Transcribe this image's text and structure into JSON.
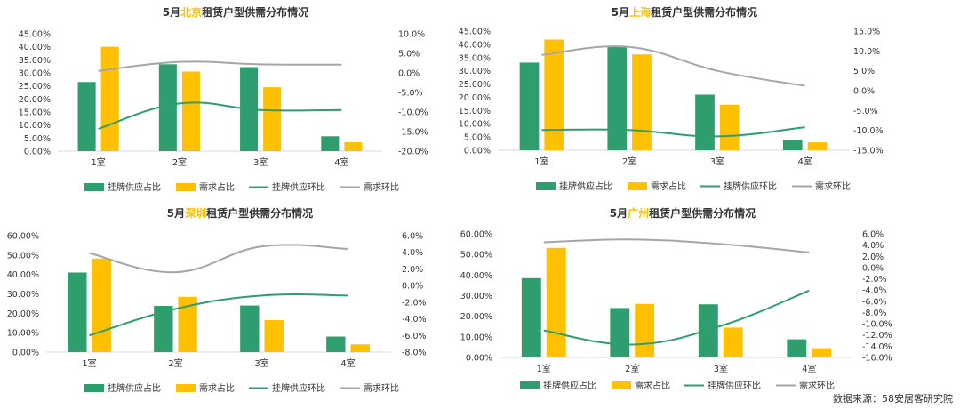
{
  "colors": {
    "supply": "#2e9e6e",
    "demand": "#ffc000",
    "supply_line": "#2e9e6e",
    "demand_line": "#a6a6a6",
    "city_highlight": "#ffc000",
    "axis": "#d9d9d9",
    "text": "#333333"
  },
  "source": {
    "label": "数据来源：",
    "value": "58安居客研究院"
  },
  "chart_data": [
    {
      "type": "bar",
      "title_prefix": "5月",
      "city": "北京",
      "title_suffix": "租赁户型供需分布情况",
      "categories": [
        "1室",
        "2室",
        "3室",
        "4室"
      ],
      "y_left": {
        "min": 0,
        "max": 0.45,
        "step": 0.05,
        "ticks": [
          "0.00%",
          "5.00%",
          "10.00%",
          "15.00%",
          "20.00%",
          "25.00%",
          "30.00%",
          "35.00%",
          "40.00%",
          "45.00%"
        ]
      },
      "y_right": {
        "min": -0.2,
        "max": 0.1,
        "step": 0.05,
        "ticks": [
          "-20.0%",
          "-15.0%",
          "-10.0%",
          "-5.0%",
          "0.0%",
          "5.0%",
          "10.0%"
        ]
      },
      "series": [
        {
          "name": "挂牌供应占比",
          "kind": "bar",
          "axis": "left",
          "values": [
            0.265,
            0.333,
            0.322,
            0.057
          ]
        },
        {
          "name": "需求占比",
          "kind": "bar",
          "axis": "left",
          "values": [
            0.4,
            0.305,
            0.245,
            0.034
          ]
        },
        {
          "name": "挂牌供应环比",
          "kind": "line",
          "axis": "right",
          "values": [
            -0.143,
            -0.078,
            -0.095,
            -0.095
          ]
        },
        {
          "name": "需求环比",
          "kind": "line",
          "axis": "right",
          "values": [
            0.005,
            0.028,
            0.022,
            0.021
          ]
        }
      ]
    },
    {
      "type": "bar",
      "title_prefix": "5月",
      "city": "上海",
      "title_suffix": "租赁户型供需分布情况",
      "categories": [
        "1室",
        "2室",
        "3室",
        "4室"
      ],
      "y_left": {
        "min": 0,
        "max": 0.45,
        "step": 0.05,
        "ticks": [
          "0.00%",
          "5.00%",
          "10.00%",
          "15.00%",
          "20.00%",
          "25.00%",
          "30.00%",
          "35.00%",
          "40.00%",
          "45.00%"
        ]
      },
      "y_right": {
        "min": -0.15,
        "max": 0.15,
        "step": 0.05,
        "ticks": [
          "-15.0%",
          "-10.0%",
          "-5.0%",
          "0.0%",
          "5.0%",
          "10.0%",
          "15.0%"
        ]
      },
      "series": [
        {
          "name": "挂牌供应占比",
          "kind": "bar",
          "axis": "left",
          "values": [
            0.331,
            0.39,
            0.21,
            0.04
          ]
        },
        {
          "name": "需求占比",
          "kind": "bar",
          "axis": "left",
          "values": [
            0.418,
            0.362,
            0.172,
            0.03
          ]
        },
        {
          "name": "挂牌供应环比",
          "kind": "line",
          "axis": "right",
          "values": [
            -0.099,
            -0.099,
            -0.115,
            -0.092
          ]
        },
        {
          "name": "需求环比",
          "kind": "line",
          "axis": "right",
          "values": [
            0.09,
            0.11,
            0.05,
            0.012
          ]
        }
      ]
    },
    {
      "type": "bar",
      "title_prefix": "5月",
      "city": "深圳",
      "title_suffix": "租赁户型供需分布情况",
      "categories": [
        "1室",
        "2室",
        "3室",
        "4室"
      ],
      "y_left": {
        "min": 0,
        "max": 0.6,
        "step": 0.1,
        "ticks": [
          "0.00%",
          "10.00%",
          "20.00%",
          "30.00%",
          "40.00%",
          "50.00%",
          "60.00%"
        ]
      },
      "y_right": {
        "min": -0.08,
        "max": 0.06,
        "step": 0.02,
        "ticks": [
          "-8.0%",
          "-6.0%",
          "-4.0%",
          "-2.0%",
          "0.0%",
          "2.0%",
          "4.0%",
          "6.0%"
        ]
      },
      "series": [
        {
          "name": "挂牌供应占比",
          "kind": "bar",
          "axis": "left",
          "values": [
            0.41,
            0.238,
            0.24,
            0.08
          ]
        },
        {
          "name": "需求占比",
          "kind": "bar",
          "axis": "left",
          "values": [
            0.482,
            0.285,
            0.165,
            0.04
          ]
        },
        {
          "name": "挂牌供应环比",
          "kind": "line",
          "axis": "right",
          "values": [
            -0.06,
            -0.028,
            -0.012,
            -0.012
          ]
        },
        {
          "name": "需求环比",
          "kind": "line",
          "axis": "right",
          "values": [
            0.039,
            0.016,
            0.047,
            0.044
          ]
        }
      ]
    },
    {
      "type": "bar",
      "title_prefix": "5月",
      "city": "广州",
      "title_suffix": "租赁户型供需分布情况",
      "categories": [
        "1室",
        "2室",
        "3室",
        "4室"
      ],
      "y_left": {
        "min": 0,
        "max": 0.6,
        "step": 0.1,
        "ticks": [
          "0.00%",
          "10.00%",
          "20.00%",
          "30.00%",
          "40.00%",
          "50.00%",
          "60.00%"
        ]
      },
      "y_right": {
        "min": -0.16,
        "max": 0.06,
        "step": 0.02,
        "ticks": [
          "-16.0%",
          "-14.0%",
          "-12.0%",
          "-10.0%",
          "-8.0%",
          "-6.0%",
          "-4.0%",
          "-2.0%",
          "0.0%",
          "2.0%",
          "4.0%",
          "6.0%"
        ]
      },
      "series": [
        {
          "name": "挂牌供应占比",
          "kind": "bar",
          "axis": "left",
          "values": [
            0.385,
            0.24,
            0.258,
            0.088
          ]
        },
        {
          "name": "需求占比",
          "kind": "bar",
          "axis": "left",
          "values": [
            0.532,
            0.26,
            0.145,
            0.045
          ]
        },
        {
          "name": "挂牌供应环比",
          "kind": "line",
          "axis": "right",
          "values": [
            -0.112,
            -0.137,
            -0.104,
            -0.041
          ]
        },
        {
          "name": "需求环比",
          "kind": "line",
          "axis": "right",
          "values": [
            0.045,
            0.05,
            0.042,
            0.027
          ]
        }
      ]
    }
  ]
}
